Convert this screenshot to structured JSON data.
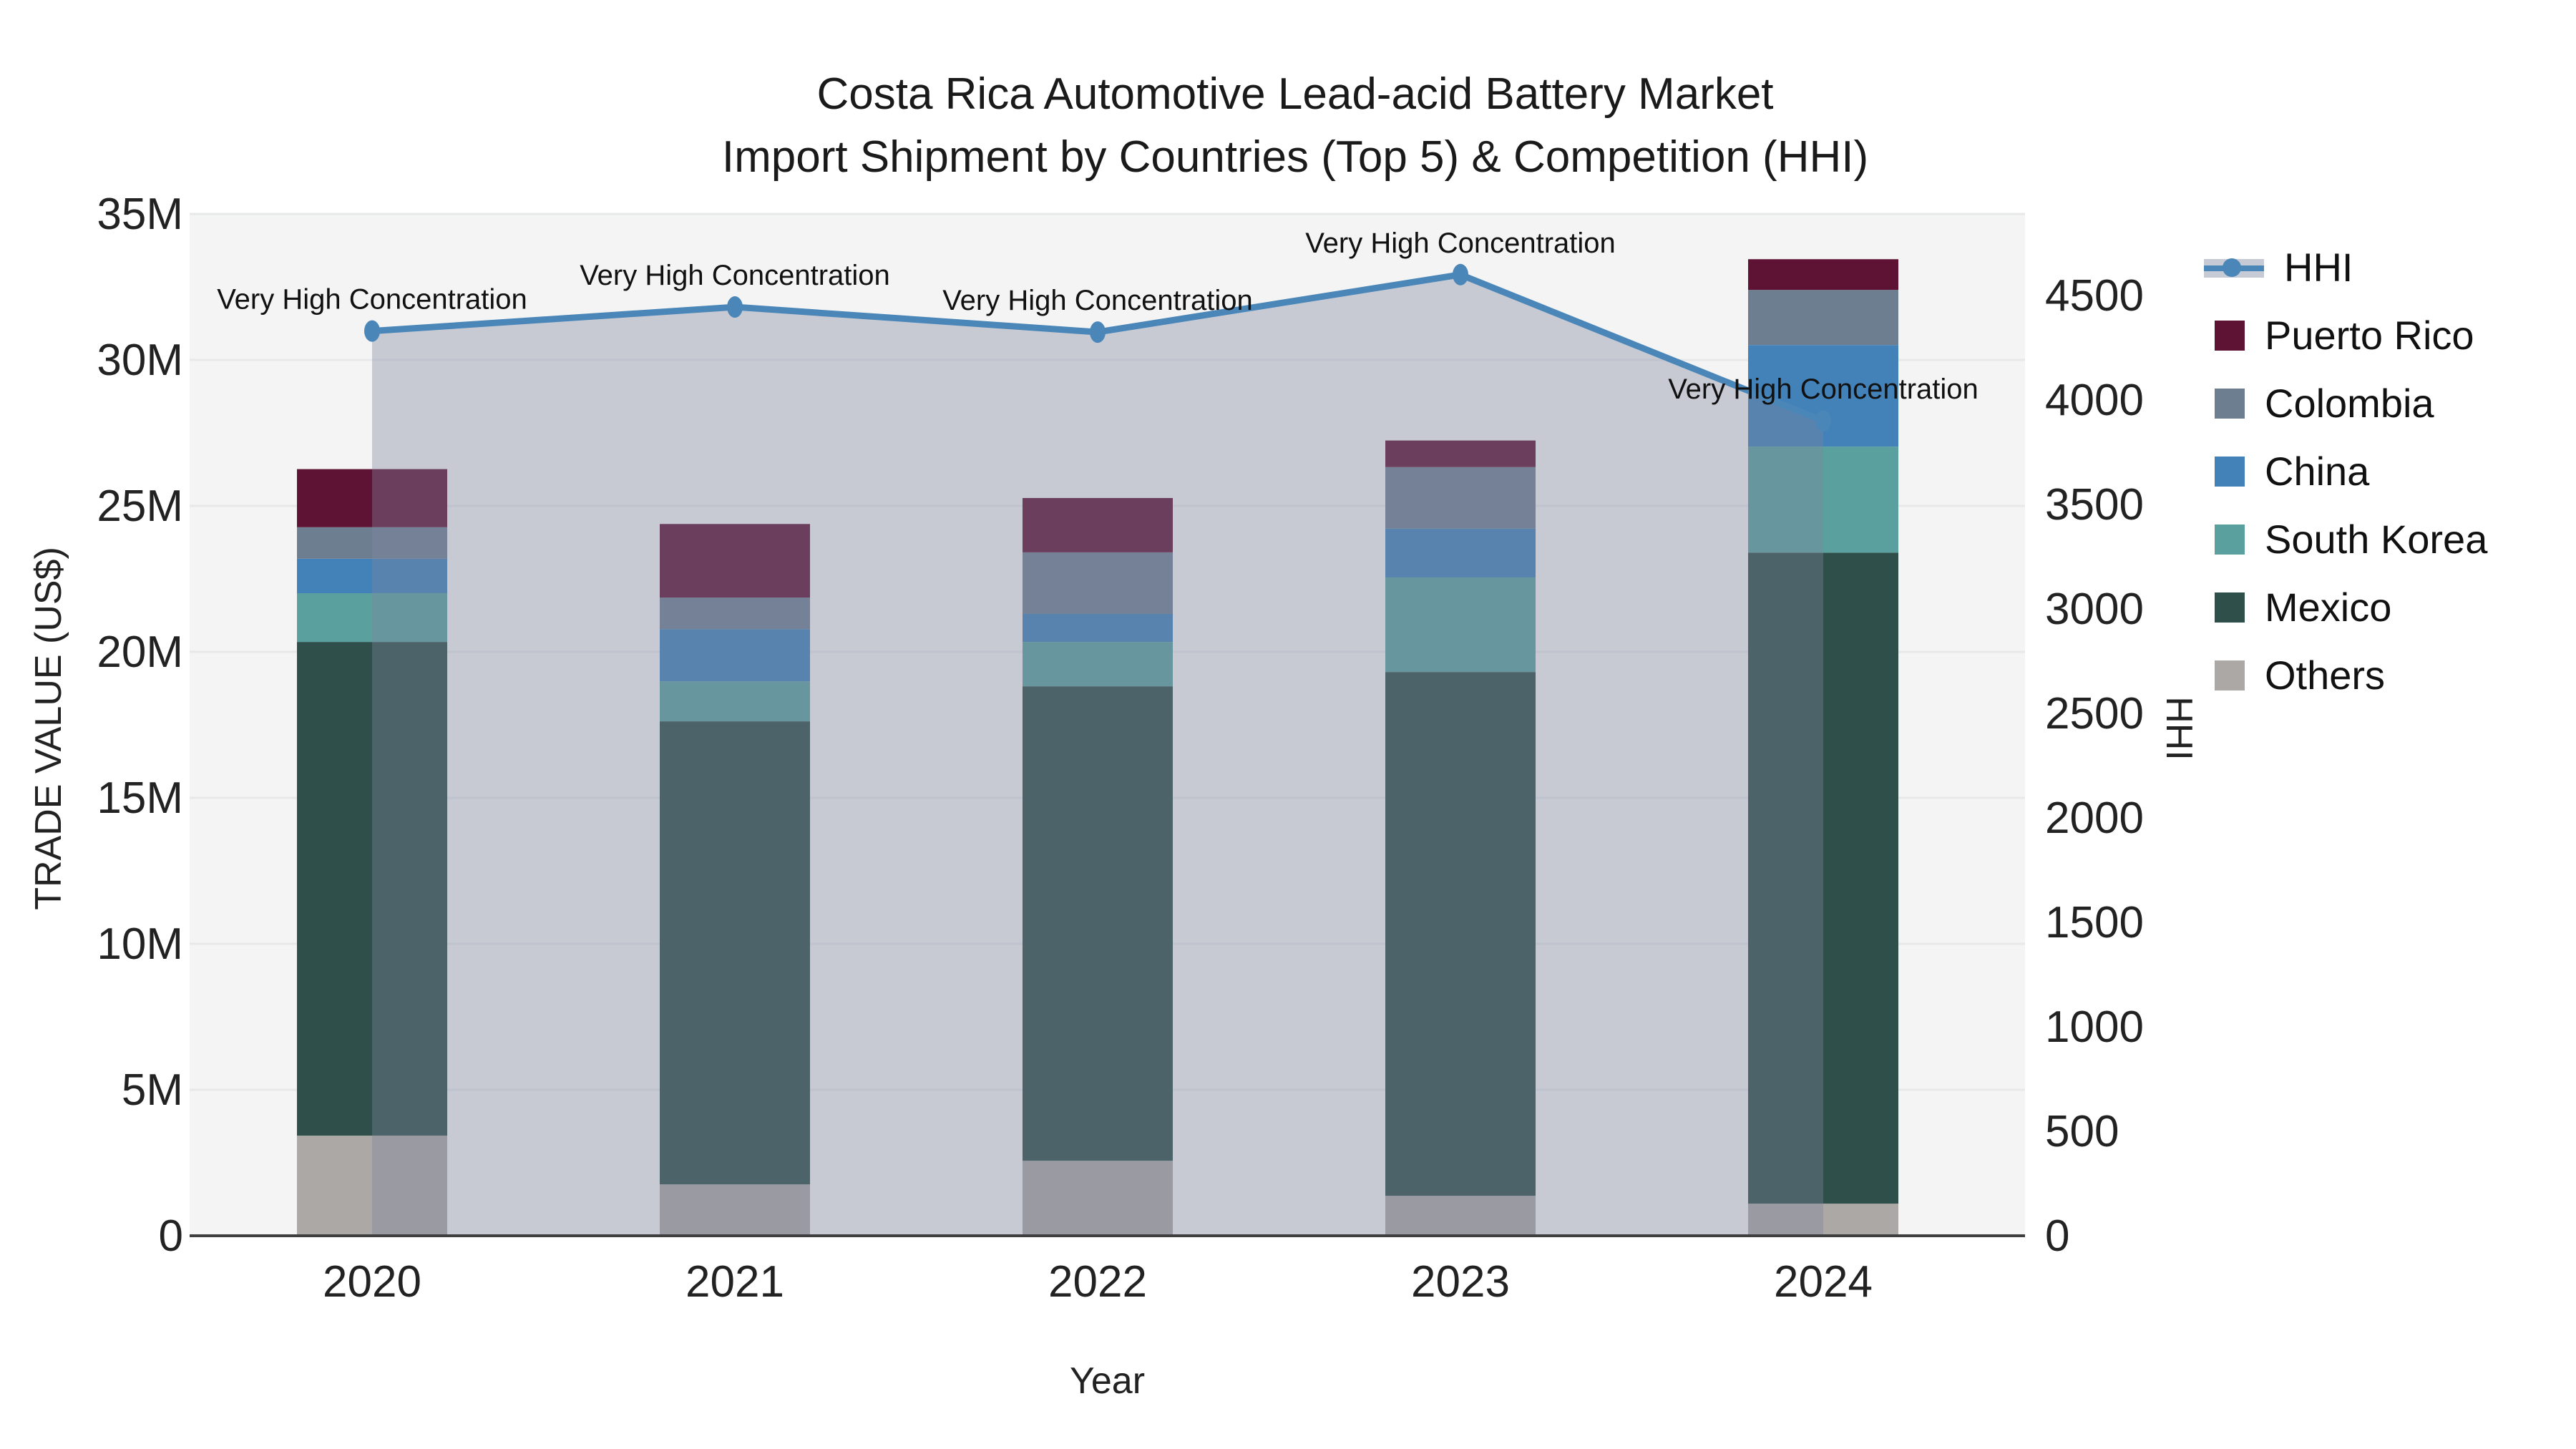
{
  "title": {
    "line1": "Costa Rica Automotive Lead-acid Battery Market",
    "line2": "Import Shipment by Countries (Top 5) & Competition (HHI)"
  },
  "axes": {
    "y_left": {
      "title": "TRADE VALUE (US$)",
      "tick_labels": [
        "0",
        "5M",
        "10M",
        "15M",
        "20M",
        "25M",
        "30M",
        "35M"
      ],
      "tick_values_millions": [
        0,
        5,
        10,
        15,
        20,
        25,
        30,
        35
      ],
      "range_millions": [
        0,
        35
      ]
    },
    "y_right": {
      "title": "HHI",
      "tick_labels": [
        "0",
        "500",
        "1000",
        "1500",
        "2000",
        "2500",
        "3000",
        "3500",
        "4000",
        "4500"
      ],
      "tick_values": [
        0,
        500,
        1000,
        1500,
        2000,
        2500,
        3000,
        3500,
        4000,
        4500
      ],
      "range": [
        0,
        4793
      ]
    },
    "x": {
      "title": "Year",
      "categories": [
        "2020",
        "2021",
        "2022",
        "2023",
        "2024"
      ]
    }
  },
  "legend": {
    "items": [
      {
        "label": "HHI",
        "color": "#4a86b8",
        "type": "line"
      },
      {
        "label": "Puerto Rico",
        "color": "#5e1234",
        "type": "bar"
      },
      {
        "label": "Colombia",
        "color": "#6e7e91",
        "type": "bar"
      },
      {
        "label": "China",
        "color": "#4282b9",
        "type": "bar"
      },
      {
        "label": "South Korea",
        "color": "#5aa09e",
        "type": "bar"
      },
      {
        "label": "Mexico",
        "color": "#2e4f4a",
        "type": "bar"
      },
      {
        "label": "Others",
        "color": "#aba8a5",
        "type": "bar"
      }
    ]
  },
  "colors": {
    "plot_background": "#f4f4f4",
    "gridline": "#e7e8ea",
    "axis_line": "#3f3f3f",
    "hhi_line": "#4a86b8",
    "hhi_fill": "rgba(125,135,158,0.38)",
    "text": "#222222"
  },
  "chart_data": {
    "type": "bar",
    "subtype": "stacked-bars-with-line-overlay",
    "title": "Costa Rica Automotive Lead-acid Battery Market — Import Shipment by Countries (Top 5) & Competition (HHI)",
    "categories": [
      "2020",
      "2021",
      "2022",
      "2023",
      "2024"
    ],
    "xlabel": "Year",
    "ylabel_left": "TRADE VALUE (US$)",
    "ylabel_right": "HHI",
    "ylim_left_millions": [
      0,
      35
    ],
    "ylim_right": [
      0,
      4793
    ],
    "grid": "horizontal-major-5M",
    "legend_position": "right",
    "bar_value_unit": "millions US$",
    "stack_order_bottom_to_top": [
      "Others",
      "Mexico",
      "South Korea",
      "China",
      "Colombia",
      "Puerto Rico"
    ],
    "series": [
      {
        "name": "Others",
        "color": "#aba8a5",
        "values": [
          3.43,
          1.76,
          2.57,
          1.37,
          1.1
        ]
      },
      {
        "name": "Mexico",
        "color": "#2e4f4a",
        "values": [
          16.91,
          15.86,
          16.25,
          17.94,
          22.3
        ]
      },
      {
        "name": "South Korea",
        "color": "#5aa09e",
        "values": [
          1.67,
          1.37,
          1.52,
          3.24,
          3.63
        ]
      },
      {
        "name": "China",
        "color": "#4282b9",
        "values": [
          1.18,
          1.79,
          0.96,
          1.67,
          3.48
        ]
      },
      {
        "name": "Colombia",
        "color": "#6e7e91",
        "values": [
          1.08,
          1.08,
          2.11,
          2.11,
          1.89
        ]
      },
      {
        "name": "Puerto Rico",
        "color": "#5e1234",
        "values": [
          1.99,
          2.52,
          1.86,
          0.91,
          1.05
        ]
      }
    ],
    "bar_totals_millions": [
      26.26,
      24.38,
      25.27,
      27.24,
      33.45
    ],
    "line_series": {
      "name": "HHI",
      "color": "#4a86b8",
      "fill": "tozeroy",
      "fill_color": "rgba(125,135,158,0.38)",
      "values": [
        4330,
        4445,
        4325,
        4600,
        3900
      ]
    },
    "annotations": [
      {
        "x_index": 0,
        "text": "Very High Concentration"
      },
      {
        "x_index": 1,
        "text": "Very High Concentration"
      },
      {
        "x_index": 2,
        "text": "Very High Concentration"
      },
      {
        "x_index": 3,
        "text": "Very High Concentration"
      },
      {
        "x_index": 4,
        "text": "Very High Concentration"
      }
    ]
  }
}
